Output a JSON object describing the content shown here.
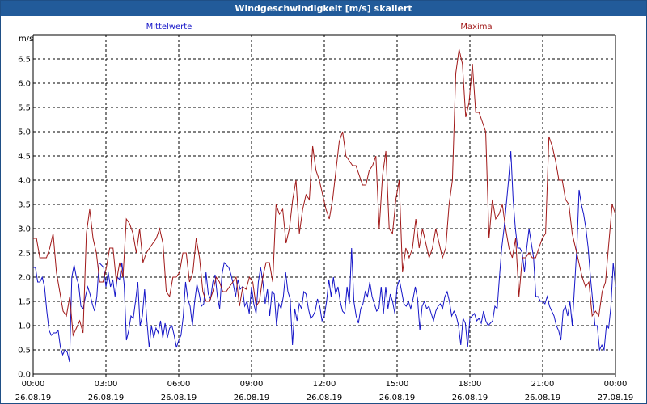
{
  "window": {
    "title": "Windgeschwindigkeit [m/s] skaliert"
  },
  "colors": {
    "mean": "#1515c8",
    "max": "#a01818",
    "grid": "#000000",
    "title_bg": "#225b9a"
  },
  "chart_data": {
    "type": "line",
    "title": "Windgeschwindigkeit [m/s] skaliert",
    "ylabel": "m/s",
    "xlabel": "",
    "ylim": [
      0,
      7
    ],
    "y_ticks": [
      {
        "v": 0.0,
        "label": "0.0"
      },
      {
        "v": 0.5,
        "label": "0.5"
      },
      {
        "v": 1.0,
        "label": "1.0"
      },
      {
        "v": 1.5,
        "label": "1.5"
      },
      {
        "v": 2.0,
        "label": "2.0"
      },
      {
        "v": 2.5,
        "label": "2.5"
      },
      {
        "v": 3.0,
        "label": "3.0"
      },
      {
        "v": 3.5,
        "label": "3.5"
      },
      {
        "v": 4.0,
        "label": "4.0"
      },
      {
        "v": 4.5,
        "label": "4.5"
      },
      {
        "v": 5.0,
        "label": "5.0"
      },
      {
        "v": 5.5,
        "label": "5.5"
      },
      {
        "v": 6.0,
        "label": "6.0"
      },
      {
        "v": 6.5,
        "label": "6.5"
      }
    ],
    "x_range_hours": [
      0,
      24
    ],
    "x_ticks": [
      {
        "h": 0,
        "time": "00:00",
        "date": "26.08.19"
      },
      {
        "h": 3,
        "time": "03:00",
        "date": "26.08.19"
      },
      {
        "h": 6,
        "time": "06:00",
        "date": "26.08.19"
      },
      {
        "h": 9,
        "time": "09:00",
        "date": "26.08.19"
      },
      {
        "h": 12,
        "time": "12:00",
        "date": "26.08.19"
      },
      {
        "h": 15,
        "time": "15:00",
        "date": "26.08.19"
      },
      {
        "h": 18,
        "time": "18:00",
        "date": "26.08.19"
      },
      {
        "h": 21,
        "time": "21:00",
        "date": "26.08.19"
      },
      {
        "h": 24,
        "time": "00:00",
        "date": "27.08.19"
      }
    ],
    "grid": true,
    "series": [
      {
        "name": "Mittelwerte",
        "color": "#1515c8",
        "values": [
          2.2,
          2.2,
          1.9,
          1.9,
          2.0,
          1.8,
          1.3,
          0.9,
          0.8,
          0.85,
          0.85,
          0.9,
          0.55,
          0.4,
          0.5,
          0.45,
          0.25,
          2.0,
          2.25,
          2.0,
          1.85,
          1.4,
          1.35,
          1.6,
          1.8,
          1.65,
          1.45,
          1.3,
          1.6,
          2.3,
          2.25,
          2.2,
          1.8,
          2.1,
          1.8,
          1.95,
          1.6,
          2.0,
          1.95,
          2.3,
          1.85,
          0.7,
          0.9,
          1.2,
          1.15,
          1.5,
          1.9,
          1.0,
          1.2,
          1.75,
          1.1,
          0.55,
          1.0,
          0.75,
          0.95,
          0.85,
          1.1,
          0.75,
          1.05,
          0.75,
          0.95,
          1.0,
          0.8,
          0.55,
          0.7,
          0.8,
          1.2,
          1.9,
          1.55,
          1.4,
          1.0,
          1.5,
          1.85,
          1.65,
          1.4,
          1.45,
          2.1,
          1.65,
          1.55,
          1.9,
          2.05,
          1.6,
          1.35,
          2.05,
          2.3,
          2.25,
          2.2,
          2.05,
          1.85,
          1.6,
          1.95,
          1.75,
          1.8,
          1.4,
          1.5,
          1.25,
          1.8,
          1.45,
          1.25,
          1.9,
          2.2,
          1.9,
          1.45,
          1.75,
          1.2,
          1.7,
          1.65,
          1.0,
          1.45,
          1.35,
          1.6,
          2.1,
          1.7,
          1.55,
          0.6,
          1.35,
          1.1,
          1.45,
          1.35,
          1.7,
          1.65,
          1.35,
          1.15,
          1.2,
          1.3,
          1.55,
          1.4,
          1.1,
          1.2,
          1.5,
          1.95,
          1.6,
          2.0,
          1.65,
          1.8,
          1.5,
          1.3,
          1.25,
          1.8,
          1.45,
          2.6,
          1.5,
          1.2,
          1.05,
          1.35,
          1.45,
          1.7,
          1.6,
          1.9,
          1.6,
          1.45,
          1.3,
          1.35,
          1.8,
          1.25,
          1.8,
          1.35,
          1.65,
          1.5,
          1.25,
          1.8,
          1.95,
          1.7,
          1.45,
          1.4,
          1.5,
          1.35,
          1.55,
          1.8,
          1.55,
          0.9,
          1.4,
          1.5,
          1.35,
          1.4,
          1.25,
          1.1,
          1.3,
          1.4,
          1.45,
          1.35,
          1.6,
          1.7,
          1.5,
          1.2,
          1.3,
          1.2,
          1.0,
          0.6,
          1.15,
          1.05,
          0.55,
          1.15,
          1.2,
          1.25,
          1.1,
          1.15,
          1.05,
          1.3,
          1.1,
          1.0,
          1.05,
          1.1,
          1.4,
          1.35,
          2.0,
          2.6,
          3.0,
          3.5,
          4.0,
          4.6,
          3.6,
          3.0,
          2.6,
          2.6,
          2.5,
          2.1,
          2.6,
          3.0,
          2.7,
          2.4,
          1.6,
          1.6,
          1.5,
          1.5,
          1.45,
          1.6,
          1.4,
          1.3,
          1.2,
          1.0,
          0.9,
          0.7,
          1.3,
          1.4,
          1.2,
          1.5,
          1.0,
          1.8,
          2.6,
          3.8,
          3.5,
          3.3,
          3.0,
          2.6,
          2.0,
          1.5,
          1.0,
          1.0,
          0.5,
          0.6,
          0.5,
          1.0,
          0.95,
          1.4,
          2.3,
          1.8
        ]
      },
      {
        "name": "Maxima",
        "color": "#a01818",
        "values": [
          2.8,
          2.8,
          2.4,
          2.4,
          2.4,
          2.6,
          2.9,
          2.1,
          1.7,
          1.3,
          1.2,
          1.6,
          0.8,
          0.95,
          1.1,
          0.85,
          2.9,
          3.4,
          2.8,
          2.5,
          1.9,
          1.9,
          2.2,
          2.6,
          2.6,
          1.9,
          2.3,
          2.0,
          3.2,
          3.1,
          2.9,
          2.5,
          3.0,
          2.3,
          2.5,
          2.6,
          2.7,
          2.8,
          3.0,
          2.7,
          1.7,
          1.6,
          2.0,
          2.0,
          2.1,
          2.5,
          2.5,
          1.9,
          2.1,
          2.8,
          2.4,
          1.7,
          1.5,
          1.5,
          1.7,
          2.0,
          1.9,
          1.7,
          1.7,
          1.8,
          1.9,
          2.0,
          1.4,
          1.8,
          1.75,
          2.0,
          1.9,
          1.4,
          1.5,
          2.0,
          2.3,
          2.3,
          1.9,
          3.5,
          3.3,
          3.4,
          2.7,
          3.0,
          3.6,
          4.0,
          2.9,
          3.4,
          3.7,
          3.6,
          4.7,
          4.2,
          4.0,
          3.7,
          3.4,
          3.2,
          3.6,
          4.2,
          4.8,
          5.0,
          4.5,
          4.4,
          4.3,
          4.3,
          4.1,
          3.9,
          3.9,
          4.2,
          4.3,
          4.5,
          3.0,
          4.1,
          4.6,
          3.0,
          2.9,
          3.6,
          4.0,
          2.1,
          2.6,
          2.4,
          2.6,
          3.2,
          2.6,
          3.0,
          2.7,
          2.4,
          2.6,
          3.0,
          2.7,
          2.4,
          2.6,
          3.5,
          4.0,
          6.2,
          6.7,
          6.4,
          5.3,
          5.6,
          6.4,
          5.4,
          5.4,
          5.2,
          5.0,
          2.8,
          3.6,
          3.2,
          3.3,
          3.5,
          3.0,
          2.6,
          2.4,
          2.8,
          1.6,
          2.4,
          2.4,
          2.5,
          2.4,
          2.4,
          2.6,
          2.8,
          2.9,
          4.9,
          4.7,
          4.4,
          4.0,
          4.0,
          3.6,
          3.5,
          2.9,
          2.6,
          2.3,
          2.0,
          1.8,
          1.9,
          1.2,
          1.3,
          1.2,
          1.7,
          1.9,
          2.7,
          3.5,
          3.3
        ]
      }
    ]
  }
}
